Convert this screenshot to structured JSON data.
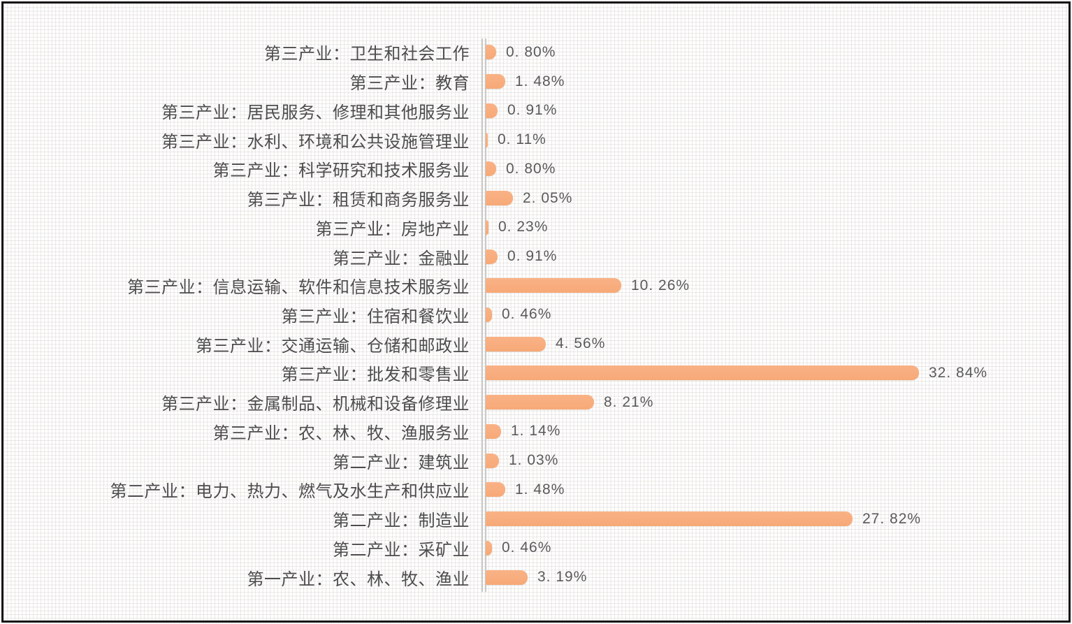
{
  "chart_data": {
    "type": "bar",
    "orientation": "horizontal",
    "title": "",
    "xlabel": "",
    "ylabel": "",
    "legend": "none",
    "axes_ticks_visible": false,
    "xlim": [
      0,
      34
    ],
    "categories": [
      "第三产业：卫生和社会工作",
      "第三产业：教育",
      "第三产业：居民服务、修理和其他服务业",
      "第三产业：水利、环境和公共设施管理业",
      "第三产业：科学研究和技术服务业",
      "第三产业：租赁和商务服务业",
      "第三产业：房地产业",
      "第三产业：金融业",
      "第三产业：信息运输、软件和信息技术服务业",
      "第三产业：住宿和餐饮业",
      "第三产业：交通运输、仓储和邮政业",
      "第三产业：批发和零售业",
      "第三产业：金属制品、机械和设备修理业",
      "第三产业：农、林、牧、渔服务业",
      "第二产业：建筑业",
      "第二产业：电力、热力、燃气及水生产和供应业",
      "第二产业：制造业",
      "第二产业：采矿业",
      "第一产业：农、林、牧、渔业"
    ],
    "values": [
      0.8,
      1.48,
      0.91,
      0.11,
      0.8,
      2.05,
      0.23,
      0.91,
      10.26,
      0.46,
      4.56,
      32.84,
      8.21,
      1.14,
      1.03,
      1.48,
      27.82,
      0.46,
      3.19
    ],
    "value_labels": [
      "0. 80%",
      "1. 48%",
      "0. 91%",
      "0. 11%",
      "0. 80%",
      "2. 05%",
      "0. 23%",
      "0. 91%",
      "10. 26%",
      "0. 46%",
      "4. 56%",
      "32. 84%",
      "8. 21%",
      "1. 14%",
      "1. 03%",
      "1. 48%",
      "27. 82%",
      "0. 46%",
      "3. 19%"
    ],
    "colors": {
      "bar": "#f8ad7e",
      "category_text": "#4c4c4c",
      "value_text": "#595959",
      "axis_line": "#c9c9c9",
      "frame_border": "#161616",
      "background_grid_line": "#e9e6e2"
    }
  }
}
